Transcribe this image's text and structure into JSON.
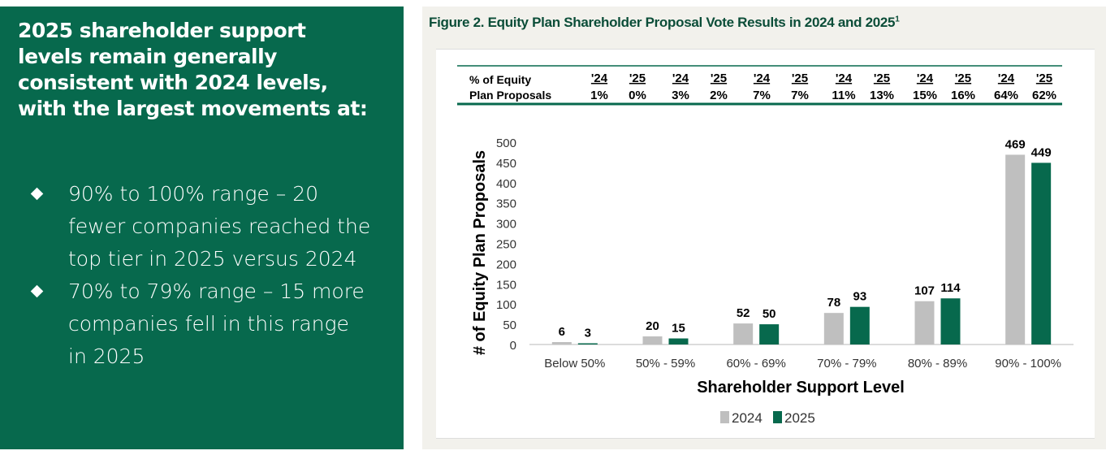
{
  "left_panel": {
    "headline": "2025 shareholder support levels remain generally consistent with 2024 levels, with the largest movements at:",
    "bullets": [
      "90% to 100% range – 20 fewer companies reached the top tier in 2025 versus 2024",
      "70% to 79% range – 15 more companies fell in this range in 2025"
    ],
    "background_color": "#07694d"
  },
  "figure": {
    "title": "Figure 2. Equity Plan Shareholder Proposal Vote Results in 2024 and 2025",
    "footnote_mark": "1"
  },
  "chart_data": {
    "type": "bar",
    "categories": [
      "Below 50%",
      "50% - 59%",
      "60% - 69%",
      "70% - 79%",
      "80% - 89%",
      "90% - 100%"
    ],
    "series": [
      {
        "name": "2024",
        "values": [
          6,
          20,
          52,
          78,
          107,
          469
        ],
        "color": "#bfbfbf"
      },
      {
        "name": "2025",
        "values": [
          3,
          15,
          50,
          93,
          114,
          449
        ],
        "color": "#07694d"
      }
    ],
    "xlabel": "Shareholder Support Level",
    "ylabel": "# of Equity Plan Proposals",
    "ylim": [
      0,
      500
    ],
    "yticks": [
      0,
      50,
      100,
      150,
      200,
      250,
      300,
      350,
      400,
      450,
      500
    ],
    "grid": false,
    "legend": "bottom",
    "data_labels": true,
    "table": {
      "row_label": [
        "% of Equity",
        "Plan Proposals"
      ],
      "year_headers": [
        "'24",
        "'25"
      ],
      "values_2024": [
        "1%",
        "3%",
        "7%",
        "11%",
        "15%",
        "64%"
      ],
      "values_2025": [
        "0%",
        "2%",
        "7%",
        "13%",
        "16%",
        "62%"
      ]
    }
  }
}
